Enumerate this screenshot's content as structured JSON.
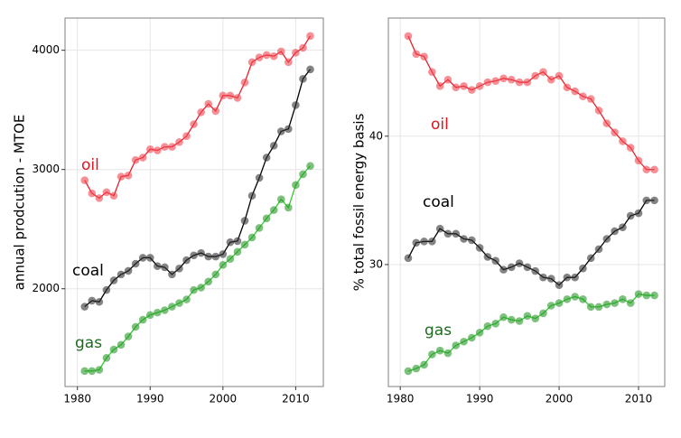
{
  "chart_data": [
    {
      "type": "line",
      "y_label": "annual prodcution - MTOE",
      "x": [
        1981,
        1982,
        1983,
        1984,
        1985,
        1986,
        1987,
        1988,
        1989,
        1990,
        1991,
        1992,
        1993,
        1994,
        1995,
        1996,
        1997,
        1998,
        1999,
        2000,
        2001,
        2002,
        2003,
        2004,
        2005,
        2006,
        2007,
        2008,
        2009,
        2010,
        2011,
        2012
      ],
      "xlim": [
        1978.3,
        2013.8
      ],
      "xticks": [
        1980,
        1990,
        2000,
        2010
      ],
      "ylim": [
        1180,
        4270
      ],
      "yticks": [
        2000,
        3000,
        4000
      ],
      "grid": true,
      "series": [
        {
          "name": "oil",
          "color": "#e8202a",
          "values": [
            2910,
            2800,
            2760,
            2810,
            2780,
            2940,
            2950,
            3080,
            3100,
            3170,
            3160,
            3190,
            3190,
            3230,
            3280,
            3380,
            3480,
            3550,
            3490,
            3620,
            3620,
            3600,
            3730,
            3900,
            3940,
            3960,
            3950,
            3990,
            3900,
            3980,
            4020,
            4120
          ]
        },
        {
          "name": "coal",
          "color": "#000000",
          "values": [
            1850,
            1900,
            1890,
            1990,
            2070,
            2120,
            2150,
            2210,
            2260,
            2260,
            2190,
            2180,
            2120,
            2170,
            2240,
            2280,
            2300,
            2270,
            2270,
            2290,
            2390,
            2400,
            2570,
            2780,
            2930,
            3100,
            3200,
            3320,
            3340,
            3540,
            3760,
            3840
          ]
        },
        {
          "name": "gas",
          "color": "#2ecc2e",
          "values": [
            1310,
            1310,
            1320,
            1420,
            1490,
            1530,
            1600,
            1680,
            1740,
            1780,
            1800,
            1820,
            1850,
            1880,
            1910,
            1990,
            2010,
            2060,
            2120,
            2200,
            2250,
            2310,
            2370,
            2430,
            2510,
            2590,
            2660,
            2750,
            2680,
            2870,
            2960,
            3030
          ]
        }
      ]
    },
    {
      "type": "line",
      "y_label": "% total fossil energy basis",
      "x": [
        1981,
        1982,
        1983,
        1984,
        1985,
        1986,
        1987,
        1988,
        1989,
        1990,
        1991,
        1992,
        1993,
        1994,
        1995,
        1996,
        1997,
        1998,
        1999,
        2000,
        2001,
        2002,
        2003,
        2004,
        2005,
        2006,
        2007,
        2008,
        2009,
        2010,
        2011,
        2012
      ],
      "xlim": [
        1978.5,
        2013.3
      ],
      "xticks": [
        1980,
        1990,
        2000,
        2010
      ],
      "ylim": [
        20.5,
        49.2
      ],
      "yticks": [
        30,
        40
      ],
      "grid": true,
      "series": [
        {
          "name": "oil",
          "color": "#e8202a",
          "values": [
            47.8,
            46.4,
            46.2,
            45.0,
            43.9,
            44.4,
            43.8,
            43.9,
            43.6,
            43.9,
            44.2,
            44.3,
            44.5,
            44.4,
            44.2,
            44.2,
            44.7,
            45.0,
            44.4,
            44.7,
            43.8,
            43.5,
            43.1,
            42.9,
            42.0,
            41.0,
            40.3,
            39.6,
            39.1,
            38.1,
            37.4,
            37.4
          ]
        },
        {
          "name": "coal",
          "color": "#000000",
          "values": [
            30.5,
            31.7,
            31.8,
            31.8,
            32.8,
            32.4,
            32.4,
            32.0,
            31.9,
            31.3,
            30.6,
            30.3,
            29.6,
            29.8,
            30.1,
            29.8,
            29.5,
            29.0,
            28.9,
            28.4,
            29.0,
            29.0,
            29.7,
            30.5,
            31.2,
            32.0,
            32.6,
            32.9,
            33.8,
            34.0,
            35.0,
            35.0
          ]
        },
        {
          "name": "gas",
          "color": "#2ecc2e",
          "values": [
            21.7,
            21.9,
            22.2,
            23.0,
            23.3,
            23.1,
            23.7,
            24.0,
            24.3,
            24.7,
            25.2,
            25.4,
            25.9,
            25.7,
            25.6,
            26.0,
            25.8,
            26.2,
            26.8,
            27.0,
            27.3,
            27.5,
            27.3,
            26.7,
            26.7,
            26.9,
            27.0,
            27.3,
            27.0,
            27.7,
            27.6,
            27.6
          ]
        }
      ]
    }
  ]
}
